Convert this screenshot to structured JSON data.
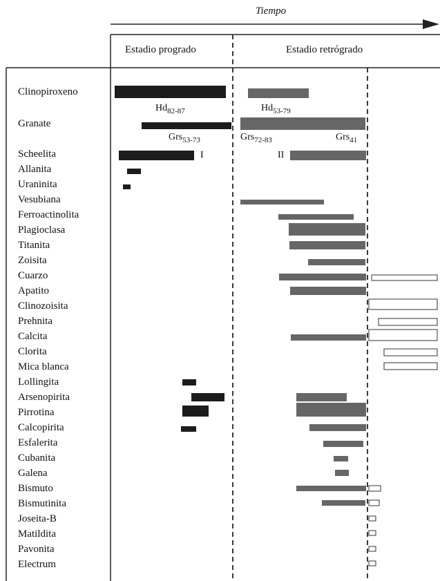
{
  "header": {
    "time_label": "Tiempo",
    "stage_prograde": "Estadio progrado",
    "stage_retrograde": "Estadio retrógrado"
  },
  "colors": {
    "prograde": "#1c1c1c",
    "retrograde": "#666666",
    "late": "#ffffff",
    "outline": "#333333"
  },
  "minerals": [
    "Clinopiroxeno",
    "Granate",
    "Scheelita",
    "Allanita",
    "Uraninita",
    "Vesubiana",
    "Ferroactinolita",
    "Plagioclasa",
    "Titanita",
    "Zoisita",
    "Cuarzo",
    "Apatito",
    "Clinozoisita",
    "Prehnita",
    "Calcita",
    "Clorita",
    "Mica blanca",
    "Lollingita",
    "Arsenopirita",
    "Pirrotina",
    "Calcopirita",
    "Esfalerita",
    "Cubanita",
    "Galena",
    "Bismuto",
    "Bismutinita",
    "Joseita-B",
    "Matildita",
    "Pavonita",
    "Electrum"
  ],
  "annotations": {
    "hd_prograde": {
      "base": "Hd",
      "sub": "82-87"
    },
    "hd_retro": {
      "base": "Hd",
      "sub": "53-79"
    },
    "grs_prograde": {
      "base": "Grs",
      "sub": "53-73"
    },
    "grs_retro_a": {
      "base": "Grs",
      "sub": "72-83"
    },
    "grs_retro_b": {
      "base": "Grs",
      "sub": "41"
    },
    "scheelita_I": "I",
    "scheelita_II": "II"
  }
}
